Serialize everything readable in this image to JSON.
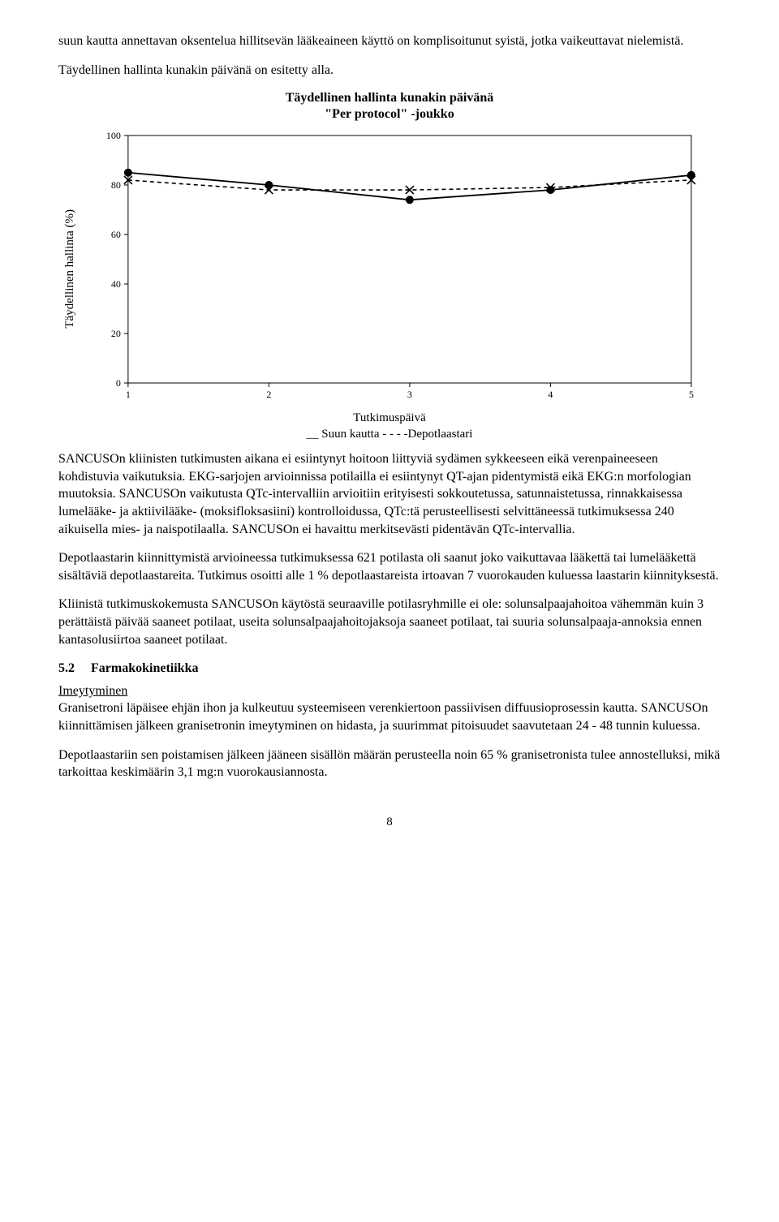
{
  "intro1": "suun kautta annettavan oksentelua hillitsevän lääkeaineen käyttö on komplisoitunut syistä, jotka vaikeuttavat nielemistä.",
  "intro2": "Täydellinen hallinta kunakin päivänä on esitetty alla.",
  "chart": {
    "type": "line",
    "title_line1": "Täydellinen hallinta kunakin päivänä",
    "title_line2": "\"Per protocol\" -joukko",
    "ylabel": "Täydellinen hallinta (%)",
    "xlabel": "Tutkimuspäivä",
    "legend_prefix": "__ Suun kautta  - - - -Depotlaastari",
    "ylim": [
      0,
      100
    ],
    "ytick_step": 20,
    "categories": [
      1,
      2,
      3,
      4,
      5
    ],
    "series": {
      "oral": {
        "label": "Suun kautta",
        "values": [
          85,
          80,
          74,
          78,
          84
        ],
        "stroke": "#000000",
        "marker": "circle",
        "dash": "none"
      },
      "patch": {
        "label": "Depotlaastari",
        "values": [
          82,
          78,
          78,
          79,
          82
        ],
        "stroke": "#000000",
        "marker": "x",
        "dash": "5,4"
      }
    },
    "background": "#ffffff",
    "border": "#000000",
    "tick_font": 12
  },
  "para1": "SANCUSOn kliinisten tutkimusten aikana ei esiintynyt hoitoon liittyviä sydämen sykkeeseen eikä verenpaineeseen kohdistuvia vaikutuksia. EKG-sarjojen arvioinnissa potilailla ei esiintynyt QT-ajan pidentymistä eikä EKG:n morfologian muutoksia. SANCUSOn vaikutusta QTc-intervalliin arvioitiin erityisesti sokkoutetussa, satunnaistetussa, rinnakkaisessa lumelääke- ja aktiivilääke- (moksifloksasiini) kontrolloidussa, QTc:tä perusteellisesti selvittäneessä tutkimuksessa 240 aikuisella mies- ja naispotilaalla. SANCUSOn ei havaittu merkitsevästi pidentävän QTc-intervallia.",
  "para2": "Depotlaastarin kiinnittymistä arvioineessa tutkimuksessa 621 potilasta oli saanut joko vaikuttavaa lääkettä tai lumelääkettä sisältäviä depotlaastareita. Tutkimus osoitti alle 1 % depotlaastareista irtoavan 7 vuorokauden kuluessa laastarin kiinnityksestä.",
  "para3": "Kliinistä tutkimuskokemusta SANCUSOn käytöstä seuraaville potilasryhmille ei ole: solunsalpaajahoitoa vähemmän kuin 3 perättäistä päivää saaneet potilaat, useita solunsalpaajahoitojaksoja saaneet potilaat, tai suuria solunsalpaaja-annoksia ennen kantasolusiirtoa saaneet potilaat.",
  "section": {
    "num": "5.2",
    "title": "Farmakokinetiikka"
  },
  "sub1_head": "Imeytyminen",
  "sub1_body": "Granisetroni läpäisee ehjän ihon ja kulkeutuu systeemiseen verenkiertoon passiivisen diffuusioprosessin kautta. SANCUSOn kiinnittämisen jälkeen granisetronin imeytyminen on hidasta, ja suurimmat pitoisuudet saavutetaan 24 - 48 tunnin kuluessa.",
  "last": "Depotlaastariin sen poistamisen jälkeen jääneen sisällön määrän perusteella noin 65 % granisetronista tulee annostelluksi, mikä tarkoittaa keskimäärin 3,1 mg:n vuorokausiannosta.",
  "page_number": "8"
}
